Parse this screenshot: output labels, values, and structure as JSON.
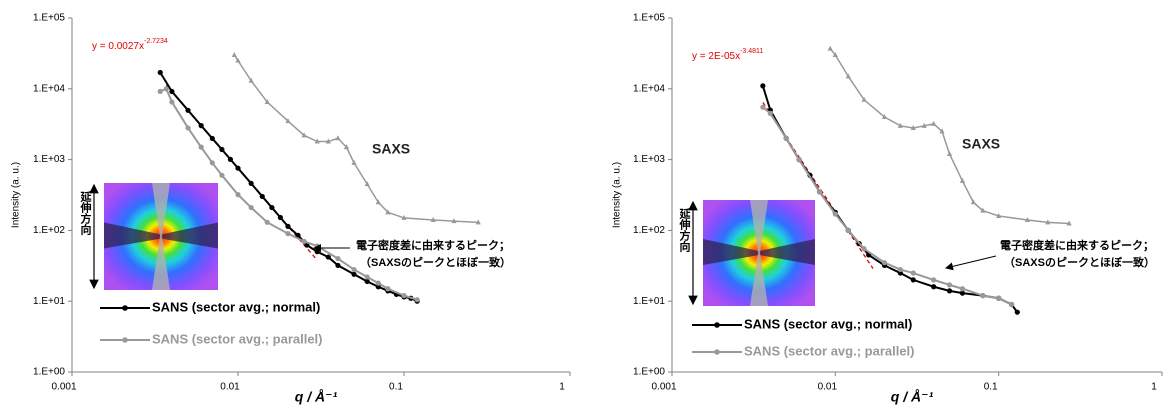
{
  "chart_data": [
    {
      "type": "line",
      "y_label": "Intensity (a. u.)",
      "x_label": "q / Å⁻¹",
      "xlim": [
        0.001,
        1
      ],
      "ylim": [
        1,
        100000
      ],
      "log_x": true,
      "log_y": true,
      "grid": false,
      "xticks": [
        0.001,
        0.01,
        0.1,
        1
      ],
      "yticks": [
        {
          "value": 1,
          "label": "1.E+00"
        },
        {
          "value": 10,
          "label": "1.E+01"
        },
        {
          "value": 100,
          "label": "1.E+02"
        },
        {
          "value": 1000,
          "label": "1.E+03"
        },
        {
          "value": 10000,
          "label": "1.E+04"
        },
        {
          "value": 100000,
          "label": "1.E+05"
        }
      ],
      "series": [
        {
          "name": "SANS (sector avg.; normal)",
          "color": "#000000",
          "marker": "circle",
          "in_legend": true,
          "x": [
            0.0034,
            0.004,
            0.005,
            0.006,
            0.007,
            0.008,
            0.009,
            0.01,
            0.012,
            0.014,
            0.016,
            0.018,
            0.02,
            0.023,
            0.026,
            0.03,
            0.035,
            0.04,
            0.05,
            0.06,
            0.07,
            0.08,
            0.09,
            0.1,
            0.11,
            0.12
          ],
          "values": [
            17000,
            9150,
            4970,
            3020,
            1990,
            1390,
            1008,
            756,
            461,
            302,
            210,
            152,
            114,
            85,
            62,
            50,
            42,
            32,
            24,
            19,
            16,
            14,
            12.5,
            11.5,
            11,
            10
          ]
        },
        {
          "name": "SANS (sector avg.; parallel)",
          "color": "#999999",
          "marker": "circle",
          "in_legend": true,
          "x": [
            0.0034,
            0.0037,
            0.004,
            0.005,
            0.006,
            0.007,
            0.008,
            0.01,
            0.012,
            0.015,
            0.02,
            0.025,
            0.03,
            0.04,
            0.05,
            0.06,
            0.07,
            0.08,
            0.1,
            0.12
          ],
          "values": [
            9200,
            10000,
            6500,
            2800,
            1500,
            900,
            600,
            320,
            210,
            130,
            90,
            70,
            60,
            40,
            28,
            22,
            18,
            15,
            12,
            10.5
          ]
        },
        {
          "name": "SAXS",
          "color": "#999999",
          "marker": "triangle",
          "in_legend": false,
          "x": [
            0.0095,
            0.01,
            0.012,
            0.015,
            0.02,
            0.025,
            0.03,
            0.035,
            0.04,
            0.045,
            0.05,
            0.06,
            0.07,
            0.08,
            0.1,
            0.15,
            0.2,
            0.28
          ],
          "values": [
            30000,
            25000,
            13000,
            6500,
            3500,
            2200,
            1800,
            1800,
            2000,
            1500,
            900,
            450,
            250,
            180,
            150,
            140,
            135,
            130
          ]
        }
      ],
      "trendline": {
        "color": "#e00000",
        "x": [
          0.0037,
          0.03
        ],
        "values": [
          11300,
          38
        ],
        "equation": {
          "base": "y = 0.0027x",
          "exponent": "-2.7234"
        }
      },
      "annotation": [
        "電子密度差に由来するピーク；",
        "（SAXSのピークとほぼ一致）"
      ],
      "inset_label": "延伸方向"
    },
    {
      "type": "line",
      "y_label": "Intensity (a. u.)",
      "x_label": "q / Å⁻¹",
      "xlim": [
        0.001,
        1
      ],
      "ylim": [
        1,
        100000
      ],
      "log_x": true,
      "log_y": true,
      "grid": false,
      "xticks": [
        0.001,
        0.01,
        0.1,
        1
      ],
      "yticks": [
        {
          "value": 1,
          "label": "1.E+00"
        },
        {
          "value": 10,
          "label": "1.E+01"
        },
        {
          "value": 100,
          "label": "1.E+02"
        },
        {
          "value": 1000,
          "label": "1.E+03"
        },
        {
          "value": 10000,
          "label": "1.E+04"
        },
        {
          "value": 100000,
          "label": "1.E+05"
        }
      ],
      "series": [
        {
          "name": "SANS (sector avg.; normal)",
          "color": "#000000",
          "marker": "circle",
          "in_legend": true,
          "x": [
            0.0036,
            0.004,
            0.005,
            0.006,
            0.007,
            0.008,
            0.01,
            0.012,
            0.014,
            0.016,
            0.02,
            0.025,
            0.03,
            0.04,
            0.05,
            0.06,
            0.08,
            0.1,
            0.12,
            0.13
          ],
          "values": [
            11000,
            5000,
            2000,
            1000,
            600,
            350,
            180,
            100,
            65,
            45,
            32,
            25,
            20,
            16,
            14,
            13,
            12,
            11,
            9,
            7
          ]
        },
        {
          "name": "SANS (sector avg.; parallel)",
          "color": "#999999",
          "marker": "circle",
          "in_legend": true,
          "x": [
            0.0036,
            0.004,
            0.005,
            0.006,
            0.008,
            0.01,
            0.012,
            0.015,
            0.02,
            0.025,
            0.03,
            0.04,
            0.05,
            0.06,
            0.08,
            0.1,
            0.12
          ],
          "values": [
            5500,
            4500,
            2000,
            1000,
            350,
            170,
            100,
            55,
            35,
            28,
            25,
            20,
            17,
            15,
            12,
            11,
            9
          ]
        },
        {
          "name": "SAXS",
          "color": "#999999",
          "marker": "triangle",
          "in_legend": false,
          "x": [
            0.0093,
            0.01,
            0.012,
            0.015,
            0.02,
            0.025,
            0.03,
            0.035,
            0.04,
            0.045,
            0.05,
            0.06,
            0.07,
            0.08,
            0.1,
            0.15,
            0.2,
            0.27
          ],
          "values": [
            37000,
            30000,
            15000,
            7000,
            4000,
            3000,
            2800,
            3000,
            3200,
            2500,
            1200,
            500,
            250,
            190,
            160,
            140,
            130,
            125
          ]
        }
      ],
      "trendline": {
        "color": "#e00000",
        "x": [
          0.0036,
          0.017
        ],
        "values": [
          6420,
          29
        ],
        "equation": {
          "base": "y = 2E-05x",
          "exponent": "-3.4811"
        }
      },
      "annotation": [
        "電子密度差に由来するピーク；",
        "（SAXSのピークとほぼ一致）"
      ],
      "inset_label": "延伸方向"
    }
  ]
}
